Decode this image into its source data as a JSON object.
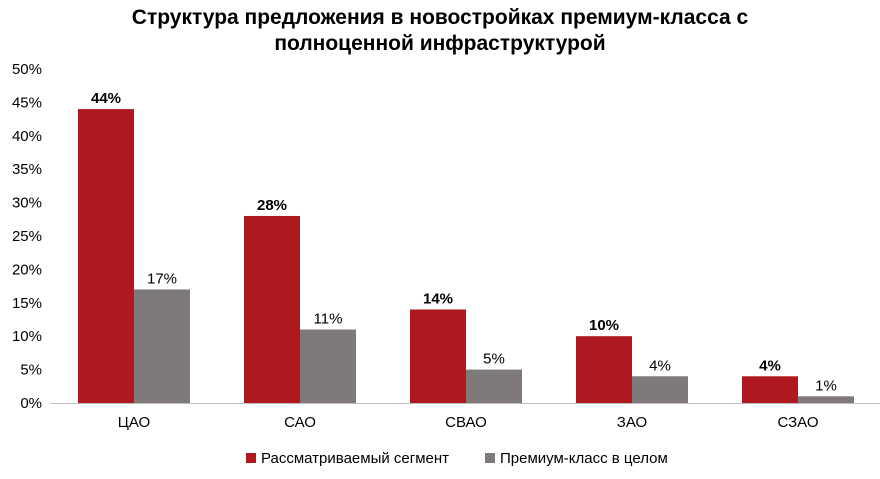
{
  "chart_data": {
    "type": "bar",
    "title_lines": [
      "Структура предложения в новостройках премиум-класса с",
      "полноценной инфраструктурой"
    ],
    "categories": [
      "ЦАО",
      "САО",
      "СВАО",
      "ЗАО",
      "СЗАО"
    ],
    "series": [
      {
        "name": "Рассматриваемый сегмент",
        "values": [
          44,
          28,
          14,
          10,
          4
        ],
        "labels": [
          "44%",
          "28%",
          "14%",
          "10%",
          "4%"
        ],
        "color": "#B01820"
      },
      {
        "name": "Премиум-класс в целом",
        "values": [
          17,
          11,
          5,
          4,
          1
        ],
        "labels": [
          "17%",
          "11%",
          "5%",
          "4%",
          "1%"
        ],
        "color": "#7F7A79"
      }
    ],
    "ylim": [
      0,
      50
    ],
    "y_ticks": [
      0,
      5,
      10,
      15,
      20,
      25,
      30,
      35,
      40,
      45,
      50
    ],
    "y_tick_labels": [
      "0%",
      "5%",
      "10%",
      "15%",
      "20%",
      "25%",
      "30%",
      "35%",
      "40%",
      "45%",
      "50%"
    ],
    "xlabel": "",
    "ylabel": "",
    "grid": false,
    "legend_position": "bottom"
  }
}
